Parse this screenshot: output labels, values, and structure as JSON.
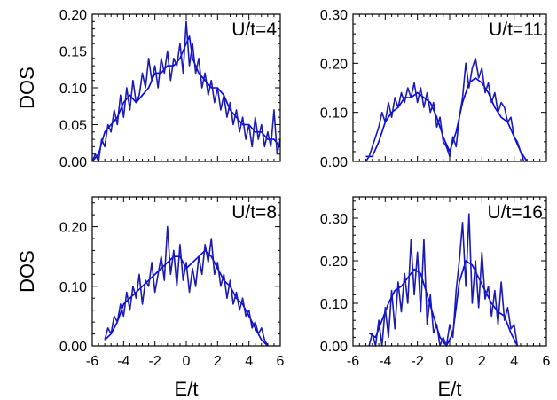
{
  "colors": {
    "series_primary": "#0000ff",
    "series_secondary": "#1a1ab4"
  },
  "chart_data": [
    {
      "type": "line",
      "annotation": "U/t=4",
      "ylabel": "DOS",
      "xlabel": "",
      "xlim": [
        -6,
        6
      ],
      "ylim": [
        0,
        0.2
      ],
      "xticks": [
        -6,
        -4,
        -2,
        0,
        2,
        4,
        6
      ],
      "xtick_labels": [],
      "yticks": [
        0,
        0.05,
        0.1,
        0.15,
        0.2
      ],
      "ytick_labels": [
        "0.00",
        "0.05",
        "0.10",
        "0.15",
        "0.20"
      ],
      "series": [
        {
          "x": [
            -6.0,
            -5.6,
            -5.2,
            -4.8,
            -4.4,
            -4.0,
            -3.6,
            -3.2,
            -2.8,
            -2.4,
            -2.0,
            -1.6,
            -1.2,
            -0.8,
            -0.4,
            0.0,
            0.2,
            0.4,
            0.8,
            1.2,
            1.6,
            2.0,
            2.4,
            2.8,
            3.2,
            3.6,
            4.0,
            4.4,
            4.8,
            5.2,
            5.6,
            6.0
          ],
          "y": [
            0.0,
            0.01,
            0.04,
            0.05,
            0.06,
            0.08,
            0.09,
            0.08,
            0.09,
            0.1,
            0.12,
            0.12,
            0.13,
            0.13,
            0.14,
            0.16,
            0.17,
            0.14,
            0.12,
            0.11,
            0.1,
            0.1,
            0.09,
            0.07,
            0.06,
            0.05,
            0.05,
            0.04,
            0.04,
            0.03,
            0.03,
            0.02
          ]
        },
        {
          "x": [
            -6.0,
            -5.8,
            -5.6,
            -5.4,
            -5.2,
            -5.0,
            -4.8,
            -4.6,
            -4.4,
            -4.2,
            -4.0,
            -3.8,
            -3.6,
            -3.4,
            -3.2,
            -3.0,
            -2.8,
            -2.6,
            -2.4,
            -2.2,
            -2.0,
            -1.8,
            -1.6,
            -1.4,
            -1.2,
            -1.0,
            -0.8,
            -0.6,
            -0.4,
            -0.2,
            0.0,
            0.2,
            0.4,
            0.6,
            0.8,
            1.0,
            1.2,
            1.4,
            1.6,
            1.8,
            2.0,
            2.2,
            2.4,
            2.6,
            2.8,
            3.0,
            3.2,
            3.4,
            3.6,
            3.8,
            4.0,
            4.2,
            4.4,
            4.6,
            4.8,
            5.0,
            5.2,
            5.4,
            5.6,
            5.8,
            6.0
          ],
          "y": [
            0.0,
            0.01,
            0.0,
            0.03,
            0.02,
            0.05,
            0.04,
            0.07,
            0.05,
            0.09,
            0.06,
            0.1,
            0.07,
            0.11,
            0.08,
            0.09,
            0.12,
            0.1,
            0.14,
            0.11,
            0.13,
            0.1,
            0.14,
            0.12,
            0.15,
            0.11,
            0.14,
            0.13,
            0.16,
            0.12,
            0.19,
            0.13,
            0.16,
            0.12,
            0.14,
            0.1,
            0.12,
            0.09,
            0.11,
            0.08,
            0.1,
            0.07,
            0.09,
            0.06,
            0.08,
            0.05,
            0.07,
            0.04,
            0.06,
            0.03,
            0.05,
            0.02,
            0.06,
            0.03,
            0.05,
            0.02,
            0.04,
            0.02,
            0.07,
            0.01,
            0.03
          ]
        }
      ]
    },
    {
      "type": "line",
      "annotation": "U/t=11",
      "ylabel": "",
      "xlabel": "",
      "xlim": [
        -6,
        6
      ],
      "ylim": [
        0,
        0.3
      ],
      "xticks": [
        -6,
        -4,
        -2,
        0,
        2,
        4,
        6
      ],
      "xtick_labels": [],
      "yticks": [
        0,
        0.1,
        0.2,
        0.3
      ],
      "ytick_labels": [
        "0.00",
        "0.10",
        "0.20",
        "0.30"
      ],
      "series": [
        {
          "x": [
            -5.2,
            -4.8,
            -4.4,
            -4.0,
            -3.6,
            -3.2,
            -2.8,
            -2.4,
            -2.0,
            -1.6,
            -1.2,
            -0.8,
            -0.4,
            0.0,
            0.4,
            0.8,
            1.2,
            1.6,
            2.0,
            2.4,
            2.8,
            3.2,
            3.6,
            4.0,
            4.4,
            4.8
          ],
          "y": [
            0.01,
            0.01,
            0.04,
            0.08,
            0.1,
            0.11,
            0.13,
            0.13,
            0.14,
            0.13,
            0.12,
            0.09,
            0.05,
            0.02,
            0.06,
            0.12,
            0.16,
            0.17,
            0.16,
            0.14,
            0.11,
            0.09,
            0.08,
            0.05,
            0.02,
            0.0
          ]
        },
        {
          "x": [
            -5.2,
            -5.0,
            -4.8,
            -4.6,
            -4.4,
            -4.2,
            -4.0,
            -3.8,
            -3.6,
            -3.4,
            -3.2,
            -3.0,
            -2.8,
            -2.6,
            -2.4,
            -2.2,
            -2.0,
            -1.8,
            -1.6,
            -1.4,
            -1.2,
            -1.0,
            -0.8,
            -0.6,
            -0.4,
            -0.2,
            0.0,
            0.2,
            0.4,
            0.6,
            0.8,
            1.0,
            1.2,
            1.4,
            1.6,
            1.8,
            2.0,
            2.2,
            2.4,
            2.6,
            2.8,
            3.0,
            3.2,
            3.4,
            3.6,
            3.8,
            4.0,
            4.2,
            4.4,
            4.6
          ],
          "y": [
            0.0,
            0.01,
            0.03,
            0.05,
            0.07,
            0.1,
            0.08,
            0.12,
            0.09,
            0.13,
            0.11,
            0.14,
            0.12,
            0.15,
            0.13,
            0.16,
            0.12,
            0.15,
            0.11,
            0.14,
            0.1,
            0.12,
            0.07,
            0.09,
            0.04,
            0.03,
            0.01,
            0.05,
            0.03,
            0.09,
            0.13,
            0.2,
            0.15,
            0.19,
            0.21,
            0.17,
            0.19,
            0.14,
            0.16,
            0.12,
            0.14,
            0.1,
            0.12,
            0.11,
            0.08,
            0.09,
            0.05,
            0.04,
            0.02,
            0.0
          ]
        }
      ]
    },
    {
      "type": "line",
      "annotation": "U/t=8",
      "ylabel": "DOS",
      "xlabel": "E/t",
      "xlim": [
        -6,
        6
      ],
      "ylim": [
        0,
        0.25
      ],
      "xticks": [
        -6,
        -4,
        -2,
        0,
        2,
        4,
        6
      ],
      "xtick_labels": [
        "-6",
        "-4",
        "-2",
        "0",
        "2",
        "4",
        "6"
      ],
      "yticks": [
        0,
        0.1,
        0.2
      ],
      "ytick_labels": [
        "0.00",
        "0.10",
        "0.20"
      ],
      "series": [
        {
          "x": [
            -5.2,
            -4.8,
            -4.4,
            -4.0,
            -3.6,
            -3.2,
            -2.8,
            -2.4,
            -2.0,
            -1.6,
            -1.2,
            -0.8,
            -0.4,
            0.0,
            0.4,
            0.8,
            1.2,
            1.6,
            2.0,
            2.4,
            2.8,
            3.2,
            3.6,
            4.0,
            4.4,
            4.8,
            5.2
          ],
          "y": [
            0.01,
            0.02,
            0.04,
            0.07,
            0.08,
            0.09,
            0.1,
            0.11,
            0.12,
            0.13,
            0.14,
            0.15,
            0.15,
            0.13,
            0.14,
            0.15,
            0.16,
            0.15,
            0.13,
            0.11,
            0.1,
            0.08,
            0.07,
            0.05,
            0.03,
            0.01,
            0.0
          ]
        },
        {
          "x": [
            -5.2,
            -5.0,
            -4.8,
            -4.6,
            -4.4,
            -4.2,
            -4.0,
            -3.8,
            -3.6,
            -3.4,
            -3.2,
            -3.0,
            -2.8,
            -2.6,
            -2.4,
            -2.2,
            -2.0,
            -1.8,
            -1.6,
            -1.4,
            -1.2,
            -1.0,
            -0.8,
            -0.6,
            -0.4,
            -0.2,
            0.0,
            0.2,
            0.4,
            0.6,
            0.8,
            1.0,
            1.2,
            1.4,
            1.6,
            1.8,
            2.0,
            2.2,
            2.4,
            2.6,
            2.8,
            3.0,
            3.2,
            3.4,
            3.6,
            3.8,
            4.0,
            4.2,
            4.4,
            4.6,
            4.8,
            5.0,
            5.2
          ],
          "y": [
            0.01,
            0.03,
            0.02,
            0.05,
            0.04,
            0.07,
            0.05,
            0.09,
            0.06,
            0.1,
            0.08,
            0.12,
            0.07,
            0.11,
            0.1,
            0.14,
            0.09,
            0.12,
            0.15,
            0.11,
            0.2,
            0.12,
            0.16,
            0.1,
            0.17,
            0.11,
            0.14,
            0.09,
            0.13,
            0.1,
            0.15,
            0.12,
            0.17,
            0.14,
            0.18,
            0.12,
            0.14,
            0.1,
            0.12,
            0.08,
            0.11,
            0.07,
            0.09,
            0.06,
            0.08,
            0.05,
            0.06,
            0.03,
            0.04,
            0.02,
            0.03,
            0.01,
            0.0
          ]
        }
      ]
    },
    {
      "type": "line",
      "annotation": "U/t=16",
      "ylabel": "",
      "xlabel": "E/t",
      "xlim": [
        -6,
        6
      ],
      "ylim": [
        0,
        0.35
      ],
      "xticks": [
        -6,
        -4,
        -2,
        0,
        2,
        4,
        6
      ],
      "xtick_labels": [
        "-6",
        "-4",
        "-2",
        "0",
        "2",
        "4",
        "6"
      ],
      "yticks": [
        0,
        0.1,
        0.2,
        0.3
      ],
      "ytick_labels": [
        "0.00",
        "0.10",
        "0.20",
        "0.30"
      ],
      "series": [
        {
          "x": [
            -5.0,
            -4.6,
            -4.2,
            -3.8,
            -3.4,
            -3.0,
            -2.6,
            -2.2,
            -1.8,
            -1.4,
            -1.0,
            -0.6,
            -0.2,
            0.2,
            0.6,
            1.0,
            1.4,
            1.8,
            2.2,
            2.6,
            3.0,
            3.4,
            3.8,
            4.2
          ],
          "y": [
            0.03,
            0.02,
            0.06,
            0.1,
            0.13,
            0.14,
            0.16,
            0.18,
            0.17,
            0.12,
            0.07,
            0.02,
            0.0,
            0.03,
            0.15,
            0.2,
            0.19,
            0.16,
            0.13,
            0.1,
            0.08,
            0.07,
            0.03,
            0.0
          ]
        },
        {
          "x": [
            -5.0,
            -4.8,
            -4.6,
            -4.4,
            -4.2,
            -4.0,
            -3.8,
            -3.6,
            -3.4,
            -3.2,
            -3.0,
            -2.8,
            -2.6,
            -2.4,
            -2.2,
            -2.0,
            -1.8,
            -1.6,
            -1.4,
            -1.2,
            -1.0,
            -0.8,
            -0.6,
            -0.4,
            -0.2,
            0.0,
            0.2,
            0.4,
            0.6,
            0.8,
            1.0,
            1.2,
            1.4,
            1.6,
            1.8,
            2.0,
            2.2,
            2.4,
            2.6,
            2.8,
            3.0,
            3.2,
            3.4,
            3.6,
            3.8,
            4.0,
            4.2
          ],
          "y": [
            0.0,
            0.03,
            0.0,
            0.06,
            0.0,
            0.09,
            0.02,
            0.13,
            0.04,
            0.15,
            0.08,
            0.17,
            0.1,
            0.25,
            0.12,
            0.22,
            0.08,
            0.25,
            0.05,
            0.12,
            0.03,
            0.05,
            0.0,
            0.02,
            0.0,
            0.05,
            0.02,
            0.13,
            0.2,
            0.29,
            0.14,
            0.31,
            0.1,
            0.2,
            0.09,
            0.22,
            0.11,
            0.14,
            0.07,
            0.13,
            0.05,
            0.15,
            0.06,
            0.09,
            0.04,
            0.05,
            0.0
          ]
        }
      ]
    }
  ]
}
